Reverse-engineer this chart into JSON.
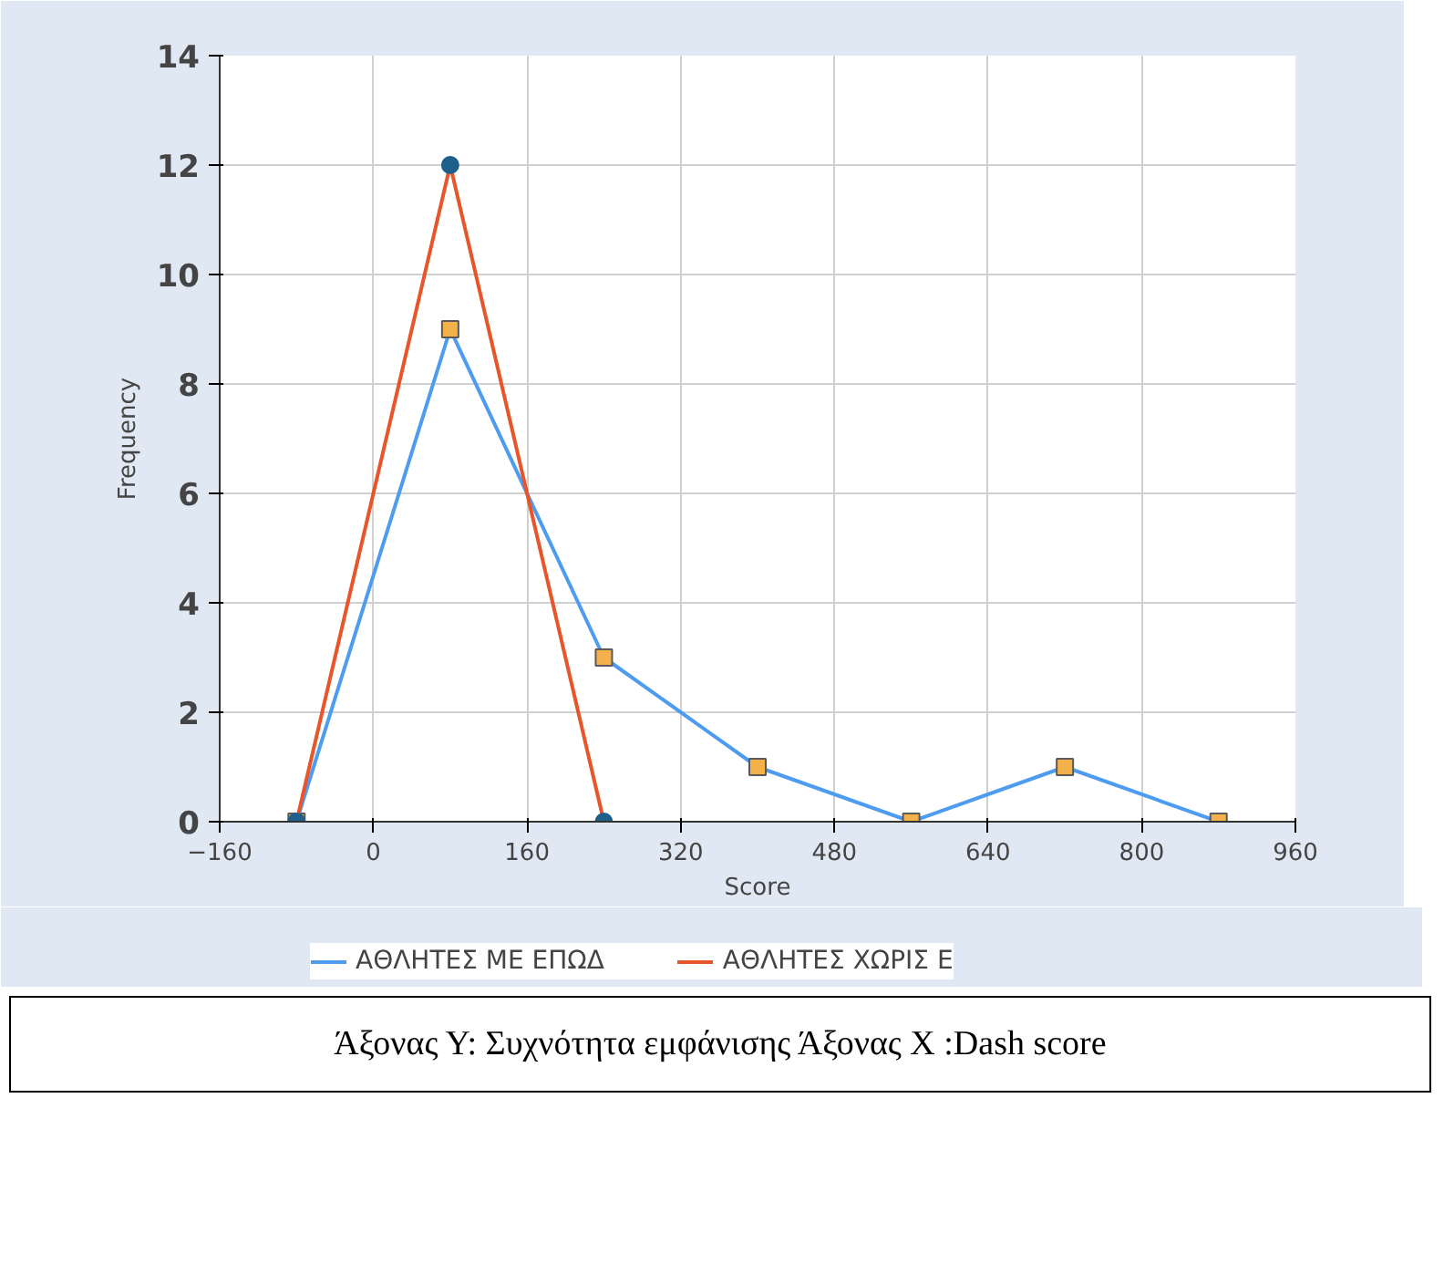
{
  "chart_data": {
    "type": "line",
    "xlabel": "Score",
    "ylabel": "Frequency",
    "xlim": [
      -160,
      960
    ],
    "xticks": [
      -160,
      0,
      160,
      320,
      480,
      640,
      800,
      960
    ],
    "ylim": [
      0,
      14
    ],
    "yticks": [
      0,
      2,
      4,
      6,
      8,
      10,
      12,
      14
    ],
    "grid": true,
    "legend": "bottom",
    "series": [
      {
        "name": "ΑΘΛΗΤΕΣ ΜΕ ΕΠΩΔ",
        "color": "#4d9cf0",
        "marker": "square",
        "x": [
          -80,
          80,
          240,
          400,
          560,
          720,
          880
        ],
        "values": [
          0,
          9,
          3,
          1,
          0,
          1,
          0
        ]
      },
      {
        "name": "ΑΘΛΗΤΕΣ ΧΩΡΙΣ Ε",
        "color": "#e8552a",
        "marker": "circle",
        "x": [
          -80,
          80,
          240
        ],
        "values": [
          0,
          12,
          0
        ]
      }
    ],
    "annotations": [
      "Άξονας Υ: Συχνότητα εμφάνισης Άξονας Χ :Dash score"
    ]
  }
}
